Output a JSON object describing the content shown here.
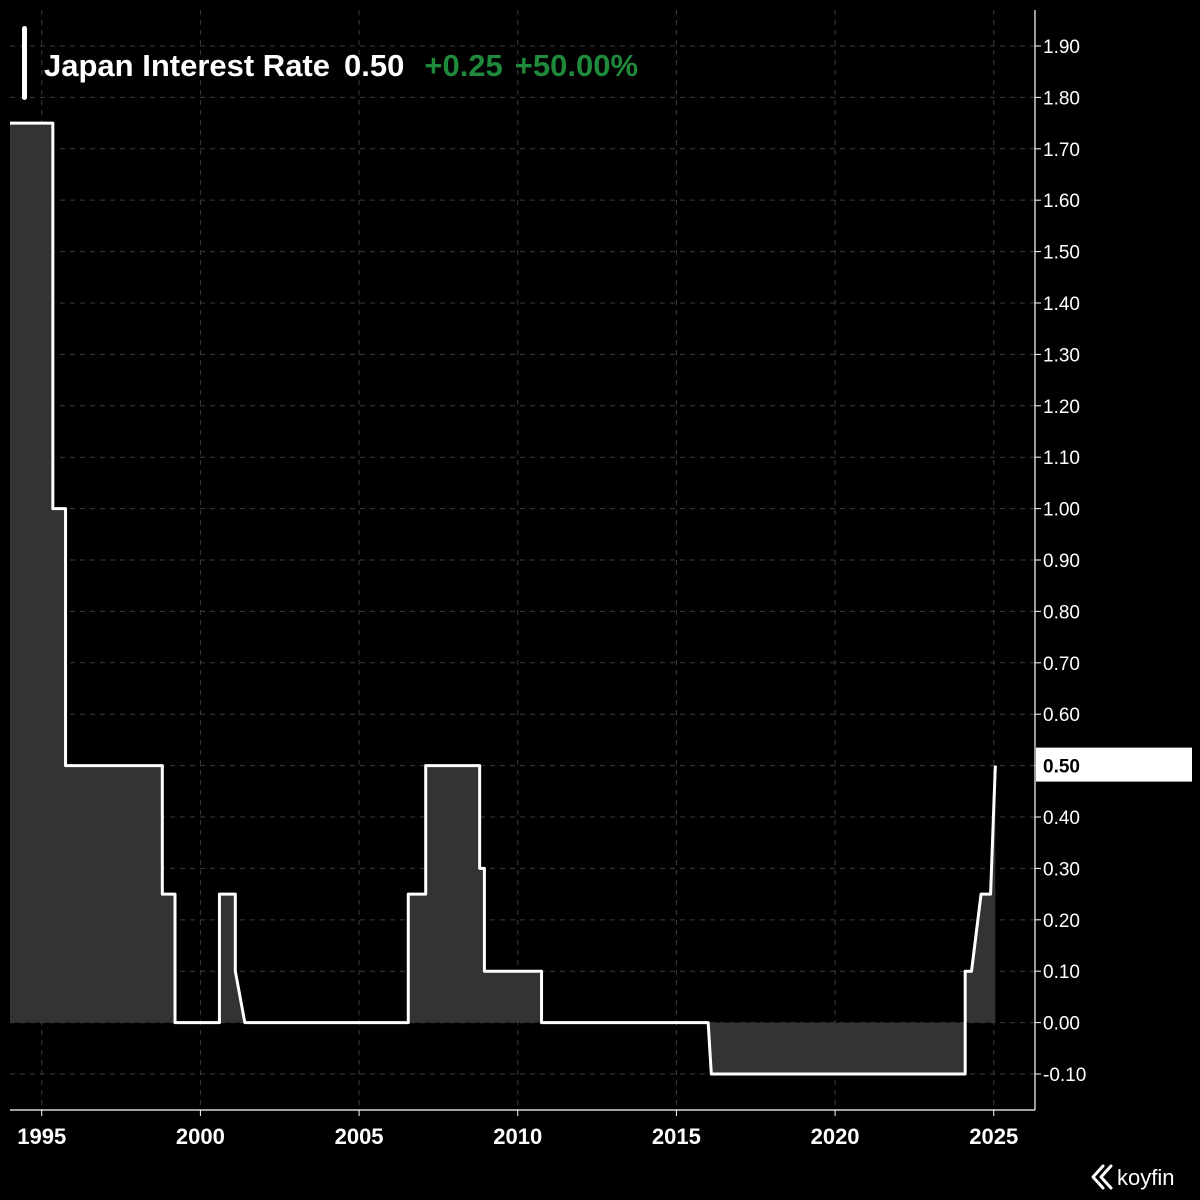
{
  "header": {
    "title": "Japan Interest Rate",
    "value": "0.50",
    "change": "+0.25",
    "change_pct": "+50.00%"
  },
  "brand": {
    "name": "koyfin"
  },
  "colors": {
    "background": "#000000",
    "line": "#ffffff",
    "fill": "#333333",
    "grid": "#3d3d3d",
    "positive": "#1f8a3b"
  },
  "chart_data": {
    "type": "area",
    "step": true,
    "grid": true,
    "legend": "none",
    "xlim": [
      1994.0,
      2026.3
    ],
    "ylim": [
      -0.17,
      1.97
    ],
    "x_ticks": [
      1995,
      2000,
      2005,
      2010,
      2015,
      2020,
      2025
    ],
    "x_tick_labels": [
      "1995",
      "2000",
      "2005",
      "2010",
      "2015",
      "2020",
      "2025"
    ],
    "y_ticks": [
      -0.1,
      0.0,
      0.1,
      0.2,
      0.3,
      0.4,
      0.5,
      0.6,
      0.7,
      0.8,
      0.9,
      1.0,
      1.1,
      1.2,
      1.3,
      1.4,
      1.5,
      1.6,
      1.7,
      1.8,
      1.9
    ],
    "y_tick_labels": [
      "-0.10",
      "0.00",
      "0.10",
      "0.20",
      "0.30",
      "0.40",
      "0.50",
      "0.60",
      "0.70",
      "0.80",
      "0.90",
      "1.00",
      "1.10",
      "1.20",
      "1.30",
      "1.40",
      "1.50",
      "1.60",
      "1.70",
      "1.80",
      "1.90"
    ],
    "last_value_label": "0.50",
    "series": [
      {
        "x": [
          1994.0,
          1995.35,
          1995.35,
          1995.75,
          1995.75,
          1998.8,
          1998.8,
          1999.2,
          1999.2,
          2000.6,
          2000.6,
          2001.1,
          2001.1,
          2001.4,
          2001.4,
          2006.55,
          2006.55,
          2007.1,
          2007.1,
          2008.8,
          2008.8,
          2008.95,
          2008.95,
          2010.75,
          2010.75,
          2016.0,
          2016.1,
          2024.1,
          2024.1,
          2024.3,
          2024.6,
          2024.9,
          2025.05
        ],
        "y": [
          1.75,
          1.75,
          1.0,
          1.0,
          0.5,
          0.5,
          0.25,
          0.25,
          0.0,
          0.0,
          0.25,
          0.25,
          0.1,
          0.0,
          0.0,
          0.0,
          0.25,
          0.25,
          0.5,
          0.5,
          0.3,
          0.3,
          0.1,
          0.1,
          0.0,
          0.0,
          -0.1,
          -0.1,
          0.1,
          0.1,
          0.25,
          0.25,
          0.5
        ]
      }
    ]
  }
}
